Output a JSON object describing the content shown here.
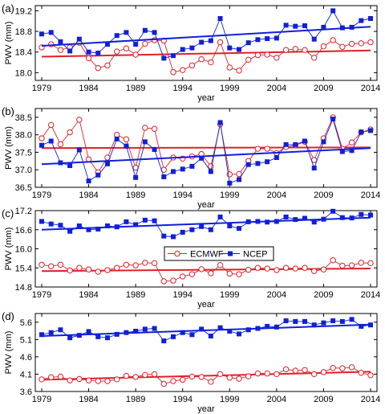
{
  "colors": {
    "ecmwf": "#e0202a",
    "ncep": "#1020d8",
    "axis": "#000000"
  },
  "chart_data": [
    {
      "type": "line",
      "panel_label": "(a)",
      "xlabel": "year",
      "ylabel": "PWV (mm)",
      "ylim": [
        17.85,
        19.3
      ],
      "yticks": [
        {
          "v": 18.0,
          "label": "18.0"
        },
        {
          "v": 18.4,
          "label": "18.4"
        },
        {
          "v": 18.8,
          "label": "18.8"
        },
        {
          "v": 19.2,
          "label": "19.2"
        }
      ],
      "series": [
        {
          "name": "ECMWF",
          "marker": "circle",
          "color": "#e0202a",
          "trend": [
            18.31,
            18.43
          ],
          "values": [
            18.49,
            18.55,
            18.44,
            18.49,
            18.58,
            18.28,
            18.09,
            18.14,
            18.41,
            18.47,
            18.35,
            18.56,
            18.63,
            18.62,
            18.01,
            18.05,
            18.14,
            18.26,
            18.2,
            18.59,
            18.1,
            18.04,
            18.25,
            18.34,
            18.35,
            18.29,
            18.44,
            18.46,
            18.44,
            18.29,
            18.51,
            18.63,
            18.5,
            18.56,
            18.57,
            18.59
          ]
        },
        {
          "name": "NCEP",
          "marker": "square",
          "color": "#1020d8",
          "trend": [
            18.52,
            18.89
          ],
          "values": [
            18.75,
            18.78,
            18.6,
            18.42,
            18.65,
            18.4,
            18.38,
            18.55,
            18.72,
            18.78,
            18.55,
            18.82,
            18.78,
            18.28,
            18.33,
            18.45,
            18.48,
            18.59,
            18.62,
            19.05,
            18.48,
            18.45,
            18.58,
            18.64,
            18.66,
            18.67,
            18.92,
            18.9,
            18.91,
            18.65,
            18.88,
            19.2,
            18.87,
            18.88,
            19.01,
            19.05
          ]
        }
      ]
    },
    {
      "type": "line",
      "panel_label": "(b)",
      "xlabel": "year",
      "ylabel": "PWV (mm)",
      "ylim": [
        36.5,
        38.75
      ],
      "yticks": [
        {
          "v": 36.5,
          "label": "36.5"
        },
        {
          "v": 37.0,
          "label": "37.0"
        },
        {
          "v": 37.5,
          "label": "37.5"
        },
        {
          "v": 38.0,
          "label": "38.0"
        },
        {
          "v": 38.5,
          "label": "38.5"
        }
      ],
      "series": [
        {
          "name": "ECMWF",
          "marker": "circle",
          "color": "#e0202a",
          "trend": [
            37.62,
            37.64
          ],
          "values": [
            37.9,
            38.28,
            37.73,
            38.07,
            38.43,
            37.3,
            36.93,
            37.35,
            38.0,
            37.87,
            37.06,
            38.2,
            38.17,
            37.0,
            37.35,
            37.32,
            37.38,
            37.45,
            37.1,
            38.3,
            36.87,
            36.88,
            37.25,
            37.6,
            37.6,
            37.48,
            37.65,
            37.7,
            37.8,
            37.28,
            37.9,
            38.5,
            37.6,
            37.78,
            38.07,
            38.15
          ]
        },
        {
          "name": "NCEP",
          "marker": "square",
          "color": "#1020d8",
          "trend": [
            37.16,
            37.62
          ],
          "values": [
            37.7,
            37.82,
            37.2,
            37.12,
            37.57,
            36.68,
            36.85,
            37.17,
            37.88,
            37.68,
            36.78,
            37.8,
            37.58,
            36.8,
            36.95,
            37.02,
            37.1,
            37.33,
            36.95,
            38.35,
            36.62,
            36.72,
            37.15,
            37.18,
            37.23,
            37.35,
            37.72,
            37.72,
            37.82,
            37.05,
            37.8,
            38.45,
            37.52,
            37.55,
            38.08,
            38.12
          ]
        }
      ]
    },
    {
      "type": "line",
      "panel_label": "(c)",
      "xlabel": "year",
      "ylabel": "PWV (mm)",
      "ylim": [
        14.8,
        17.2
      ],
      "yticks": [
        {
          "v": 14.8,
          "label": "14.8"
        },
        {
          "v": 15.4,
          "label": "15.4"
        },
        {
          "v": 16.0,
          "label": "16.0"
        },
        {
          "v": 16.6,
          "label": "16.6"
        },
        {
          "v": 17.2,
          "label": "17.2"
        }
      ],
      "legend": {
        "position": "center",
        "entries": [
          "ECMWF",
          "NCEP"
        ]
      },
      "series": [
        {
          "name": "ECMWF",
          "marker": "circle",
          "color": "#e0202a",
          "trend": [
            15.3,
            15.38
          ],
          "values": [
            15.5,
            15.45,
            15.5,
            15.32,
            15.4,
            15.35,
            15.28,
            15.33,
            15.4,
            15.5,
            15.48,
            15.56,
            15.55,
            14.98,
            15.0,
            15.13,
            15.2,
            15.36,
            15.23,
            15.49,
            15.22,
            15.2,
            15.34,
            15.4,
            15.38,
            15.33,
            15.4,
            15.38,
            15.4,
            15.3,
            15.35,
            15.64,
            15.47,
            15.48,
            15.56,
            15.55
          ]
        },
        {
          "name": "NCEP",
          "marker": "square",
          "color": "#1020d8",
          "trend": [
            16.6,
            16.98
          ],
          "values": [
            16.86,
            16.78,
            16.74,
            16.55,
            16.72,
            16.6,
            16.62,
            16.72,
            16.69,
            16.85,
            16.76,
            16.9,
            16.88,
            16.4,
            16.38,
            16.52,
            16.6,
            16.7,
            16.6,
            17.0,
            16.72,
            16.64,
            16.85,
            16.86,
            16.84,
            16.86,
            17.0,
            16.92,
            16.96,
            16.84,
            16.93,
            17.18,
            16.98,
            16.97,
            17.08,
            17.06
          ]
        }
      ]
    },
    {
      "type": "line",
      "panel_label": "(d)",
      "xlabel": "year",
      "ylabel": "PWV (mm)",
      "ylim": [
        3.6,
        5.85
      ],
      "yticks": [
        {
          "v": 3.6,
          "label": "3.6"
        },
        {
          "v": 4.1,
          "label": "4.1"
        },
        {
          "v": 4.6,
          "label": "4.6"
        },
        {
          "v": 5.1,
          "label": "5.1"
        },
        {
          "v": 5.6,
          "label": "5.6"
        }
      ],
      "series": [
        {
          "name": "ECMWF",
          "marker": "circle",
          "color": "#e0202a",
          "trend": [
            3.94,
            4.17
          ],
          "values": [
            3.95,
            4.01,
            4.03,
            3.92,
            3.96,
            3.92,
            3.9,
            3.9,
            3.95,
            4.05,
            4.02,
            4.08,
            4.1,
            3.82,
            3.9,
            3.94,
            4.03,
            4.02,
            3.88,
            4.1,
            4.0,
            3.97,
            4.04,
            4.12,
            4.12,
            4.1,
            4.24,
            4.2,
            4.22,
            4.1,
            4.16,
            4.28,
            4.27,
            4.3,
            4.14,
            4.07
          ]
        },
        {
          "name": "NCEP",
          "marker": "square",
          "color": "#1020d8",
          "trend": [
            5.2,
            5.53
          ],
          "values": [
            5.24,
            5.3,
            5.38,
            5.15,
            5.22,
            5.33,
            5.18,
            5.15,
            5.25,
            5.3,
            5.34,
            5.4,
            5.42,
            5.06,
            5.18,
            5.3,
            5.24,
            5.4,
            5.2,
            5.44,
            5.34,
            5.26,
            5.38,
            5.42,
            5.48,
            5.46,
            5.64,
            5.62,
            5.62,
            5.52,
            5.58,
            5.64,
            5.62,
            5.68,
            5.48,
            5.52
          ]
        }
      ]
    }
  ],
  "x": {
    "start": 1979,
    "end": 2014,
    "ticks": [
      "1979",
      "1984",
      "1989",
      "1994",
      "1999",
      "2004",
      "2009",
      "2014"
    ]
  }
}
